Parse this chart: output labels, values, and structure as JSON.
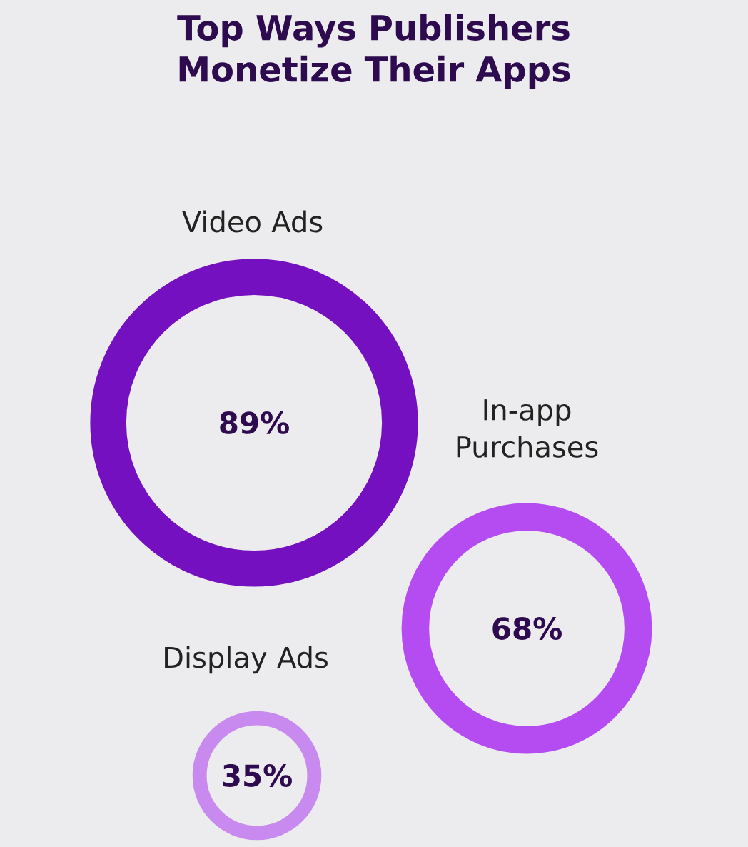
{
  "chart_data": {
    "type": "other",
    "title": "Top Ways Publishers Monetize Their Apps",
    "categories": [
      "Video Ads",
      "In-app Purchases",
      "Display Ads"
    ],
    "values": [
      89,
      68,
      35
    ],
    "value_labels": [
      "89%",
      "68%",
      "35%"
    ],
    "colors": [
      "#7410c0",
      "#b54cf2",
      "#c98aef"
    ]
  }
}
